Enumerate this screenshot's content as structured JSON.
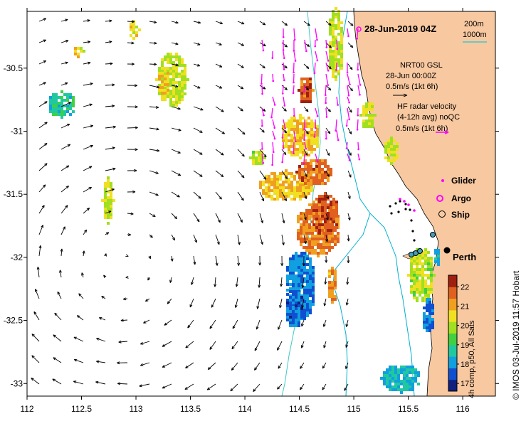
{
  "title": "28-Jun-2019 04Z",
  "credit": "© IMOS 03-Jul-2019 11:57 Hobart",
  "bathymetry_legend": [
    "200m",
    "1000m"
  ],
  "bathymetry_colors": {
    "200m": "#00b0d0",
    "1000m": "#40c8c8"
  },
  "annotations": {
    "nrt_title": "NRT00 GSL",
    "nrt_time": "28-Jun 00:00Z",
    "nrt_scale": "0.5m/s (1kt 6h)",
    "hf_title": "HF radar velocity",
    "hf_avg": "(4-12h avg) noQC",
    "hf_scale": "0.5m/s (1kt 6h)"
  },
  "legend": [
    {
      "label": "Glider",
      "symbol": "glider-dot",
      "color": "#ff00ff"
    },
    {
      "label": "Argo",
      "symbol": "argo-circle",
      "color": "#ff00ff"
    },
    {
      "label": "Ship",
      "symbol": "ship-circle",
      "color": "#000000"
    }
  ],
  "city": {
    "name": "Perth",
    "lon": 115.86,
    "lat": -31.95
  },
  "colorbar": {
    "label": "4h comp, p50, All Sats",
    "ticks": [
      "17",
      "18",
      "19",
      "20",
      "21",
      "22"
    ],
    "range": [
      16.6,
      22.6
    ],
    "colors": [
      "#102080",
      "#1050d0",
      "#10a0e0",
      "#20c8a0",
      "#40d040",
      "#a0e020",
      "#f0e020",
      "#f0a020",
      "#e06020",
      "#a02010"
    ]
  },
  "axes": {
    "x_ticks": [
      "112",
      "112.5",
      "113",
      "113.5",
      "114",
      "114.5",
      "115",
      "115.5",
      "116"
    ],
    "y_ticks": [
      "-30.5",
      "-31",
      "-31.5",
      "-32",
      "-32.5",
      "-33"
    ],
    "xlim": [
      112,
      116.3
    ],
    "ylim": [
      -33.1,
      -30.05
    ]
  },
  "colors": {
    "land": "#f8c8a0",
    "ocean": "#ffffff",
    "glider": "#ff00ff",
    "hf_radar": "#ff00ff",
    "model_vectors": "#000000"
  }
}
